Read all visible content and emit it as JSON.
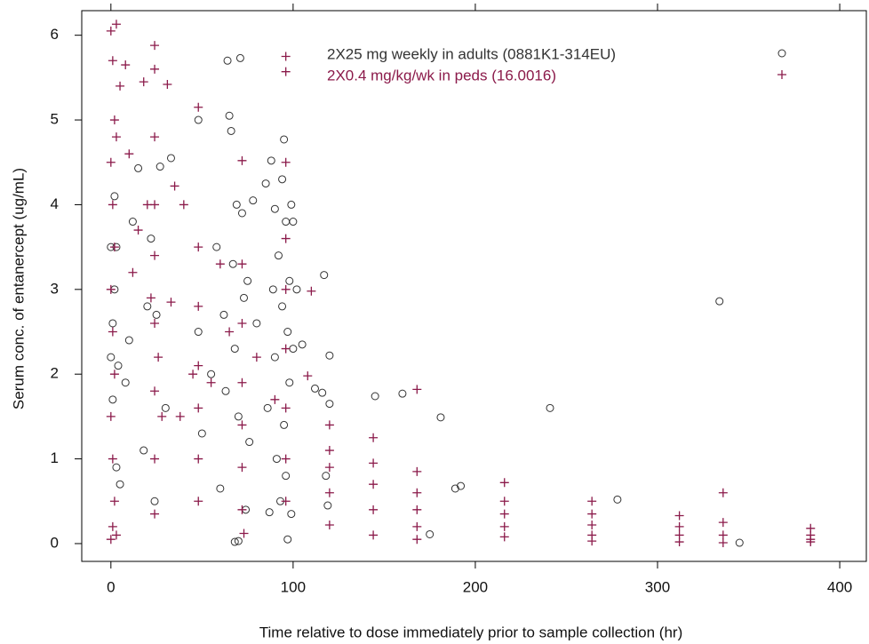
{
  "chart_data": {
    "type": "scatter",
    "x_label": "Time relative to dose immediately prior to sample collection (hr)",
    "y_label": "Serum conc. of entanercept (ug/mL)",
    "xlim": [
      -16,
      414.6
    ],
    "ylim": [
      -0.21,
      6.29
    ],
    "xticks": [
      0,
      100,
      200,
      300,
      400
    ],
    "yticks": [
      0,
      1,
      2,
      3,
      4,
      5,
      6
    ],
    "legend": "upper right",
    "grid": false,
    "series": [
      {
        "name": "2X25 mg weekly in adults (0881K1-314EU)",
        "color": "#333333",
        "marker": "circle",
        "x": [
          0,
          0,
          1,
          1,
          2,
          2,
          3,
          3,
          4,
          5,
          8,
          10,
          12,
          15,
          18,
          20,
          22,
          24,
          25,
          27,
          30,
          33,
          48,
          48,
          50,
          55,
          58,
          60,
          62,
          63,
          64,
          65,
          66,
          67,
          68,
          68,
          69,
          70,
          70,
          71,
          72,
          73,
          74,
          75,
          76,
          78,
          80,
          85,
          86,
          87,
          88,
          89,
          90,
          90,
          91,
          92,
          93,
          94,
          94,
          95,
          95,
          96,
          96,
          97,
          97,
          98,
          98,
          99,
          99,
          100,
          100,
          102,
          105,
          112,
          116,
          117,
          118,
          119,
          120,
          120,
          145,
          160,
          175,
          181,
          189,
          192,
          241,
          278,
          334,
          345
        ],
        "values": [
          3.5,
          2.2,
          2.6,
          1.7,
          3.0,
          4.1,
          0.9,
          3.5,
          2.1,
          0.7,
          1.9,
          2.4,
          3.8,
          4.43,
          1.1,
          2.8,
          3.6,
          0.5,
          2.7,
          4.45,
          1.6,
          4.55,
          5.0,
          2.5,
          1.3,
          2.0,
          3.5,
          0.65,
          2.7,
          1.8,
          5.7,
          5.05,
          4.87,
          3.3,
          0.02,
          2.3,
          4.0,
          0.03,
          1.5,
          5.73,
          3.9,
          2.9,
          0.4,
          3.1,
          1.2,
          4.05,
          2.6,
          4.25,
          1.6,
          0.37,
          4.52,
          3.0,
          3.95,
          2.2,
          1.0,
          3.4,
          0.5,
          4.3,
          2.8,
          4.77,
          1.4,
          3.8,
          0.8,
          2.5,
          0.05,
          3.1,
          1.9,
          4.0,
          0.35,
          3.8,
          2.3,
          3.0,
          2.35,
          1.83,
          1.78,
          3.17,
          0.8,
          0.45,
          2.22,
          1.65,
          1.74,
          1.77,
          0.11,
          1.49,
          0.65,
          0.68,
          1.6,
          0.52,
          2.86,
          0.01
        ]
      },
      {
        "name": "2X0.4 mg/kg/wk in peds (16.0016)",
        "color": "#8b1a4a",
        "marker": "plus",
        "x": [
          0,
          1,
          2,
          0,
          1,
          2,
          0,
          1,
          2,
          0,
          1,
          2,
          0,
          1,
          3,
          3,
          3,
          5,
          8,
          10,
          12,
          15,
          18,
          20,
          22,
          24,
          24,
          24,
          24,
          24,
          24,
          24,
          24,
          24,
          26,
          28,
          31,
          33,
          35,
          38,
          40,
          45,
          48,
          48,
          48,
          48,
          48,
          48,
          48,
          55,
          60,
          65,
          72,
          72,
          72,
          72,
          72,
          72,
          72,
          73,
          80,
          90,
          96,
          96,
          96,
          96,
          96,
          96,
          96,
          96,
          96,
          108,
          110,
          120,
          120,
          120,
          120,
          120,
          144,
          144,
          144,
          144,
          144,
          168,
          168,
          168,
          168,
          168,
          168,
          216,
          216,
          216,
          216,
          216,
          264,
          264,
          264,
          264,
          264,
          312,
          312,
          312,
          312,
          336,
          336,
          336,
          336,
          384,
          384,
          384,
          384
        ],
        "values": [
          6.05,
          5.7,
          5.0,
          4.5,
          4.0,
          3.5,
          3.0,
          2.5,
          2.0,
          1.5,
          1.0,
          0.5,
          0.05,
          0.2,
          0.1,
          4.8,
          6.13,
          5.4,
          5.65,
          4.6,
          3.2,
          3.7,
          5.45,
          4.0,
          2.9,
          5.88,
          5.6,
          4.8,
          4.0,
          3.4,
          2.6,
          1.8,
          1.0,
          0.35,
          2.2,
          1.5,
          5.42,
          2.85,
          4.22,
          1.5,
          4.0,
          2.0,
          5.15,
          3.5,
          2.8,
          2.1,
          1.6,
          1.0,
          0.5,
          1.9,
          3.3,
          2.5,
          4.52,
          3.3,
          2.6,
          1.9,
          1.4,
          0.9,
          0.4,
          0.12,
          2.2,
          1.7,
          5.75,
          5.57,
          4.5,
          3.6,
          3.0,
          2.3,
          1.6,
          1.0,
          0.5,
          1.98,
          2.98,
          1.4,
          1.1,
          0.9,
          0.6,
          0.22,
          1.25,
          0.95,
          0.7,
          0.4,
          0.1,
          1.82,
          0.85,
          0.6,
          0.4,
          0.2,
          0.05,
          0.72,
          0.5,
          0.35,
          0.2,
          0.08,
          0.5,
          0.35,
          0.22,
          0.1,
          0.03,
          0.33,
          0.2,
          0.1,
          0.02,
          0.6,
          0.25,
          0.1,
          0.01,
          0.18,
          0.1,
          0.05,
          0.02
        ]
      }
    ]
  }
}
